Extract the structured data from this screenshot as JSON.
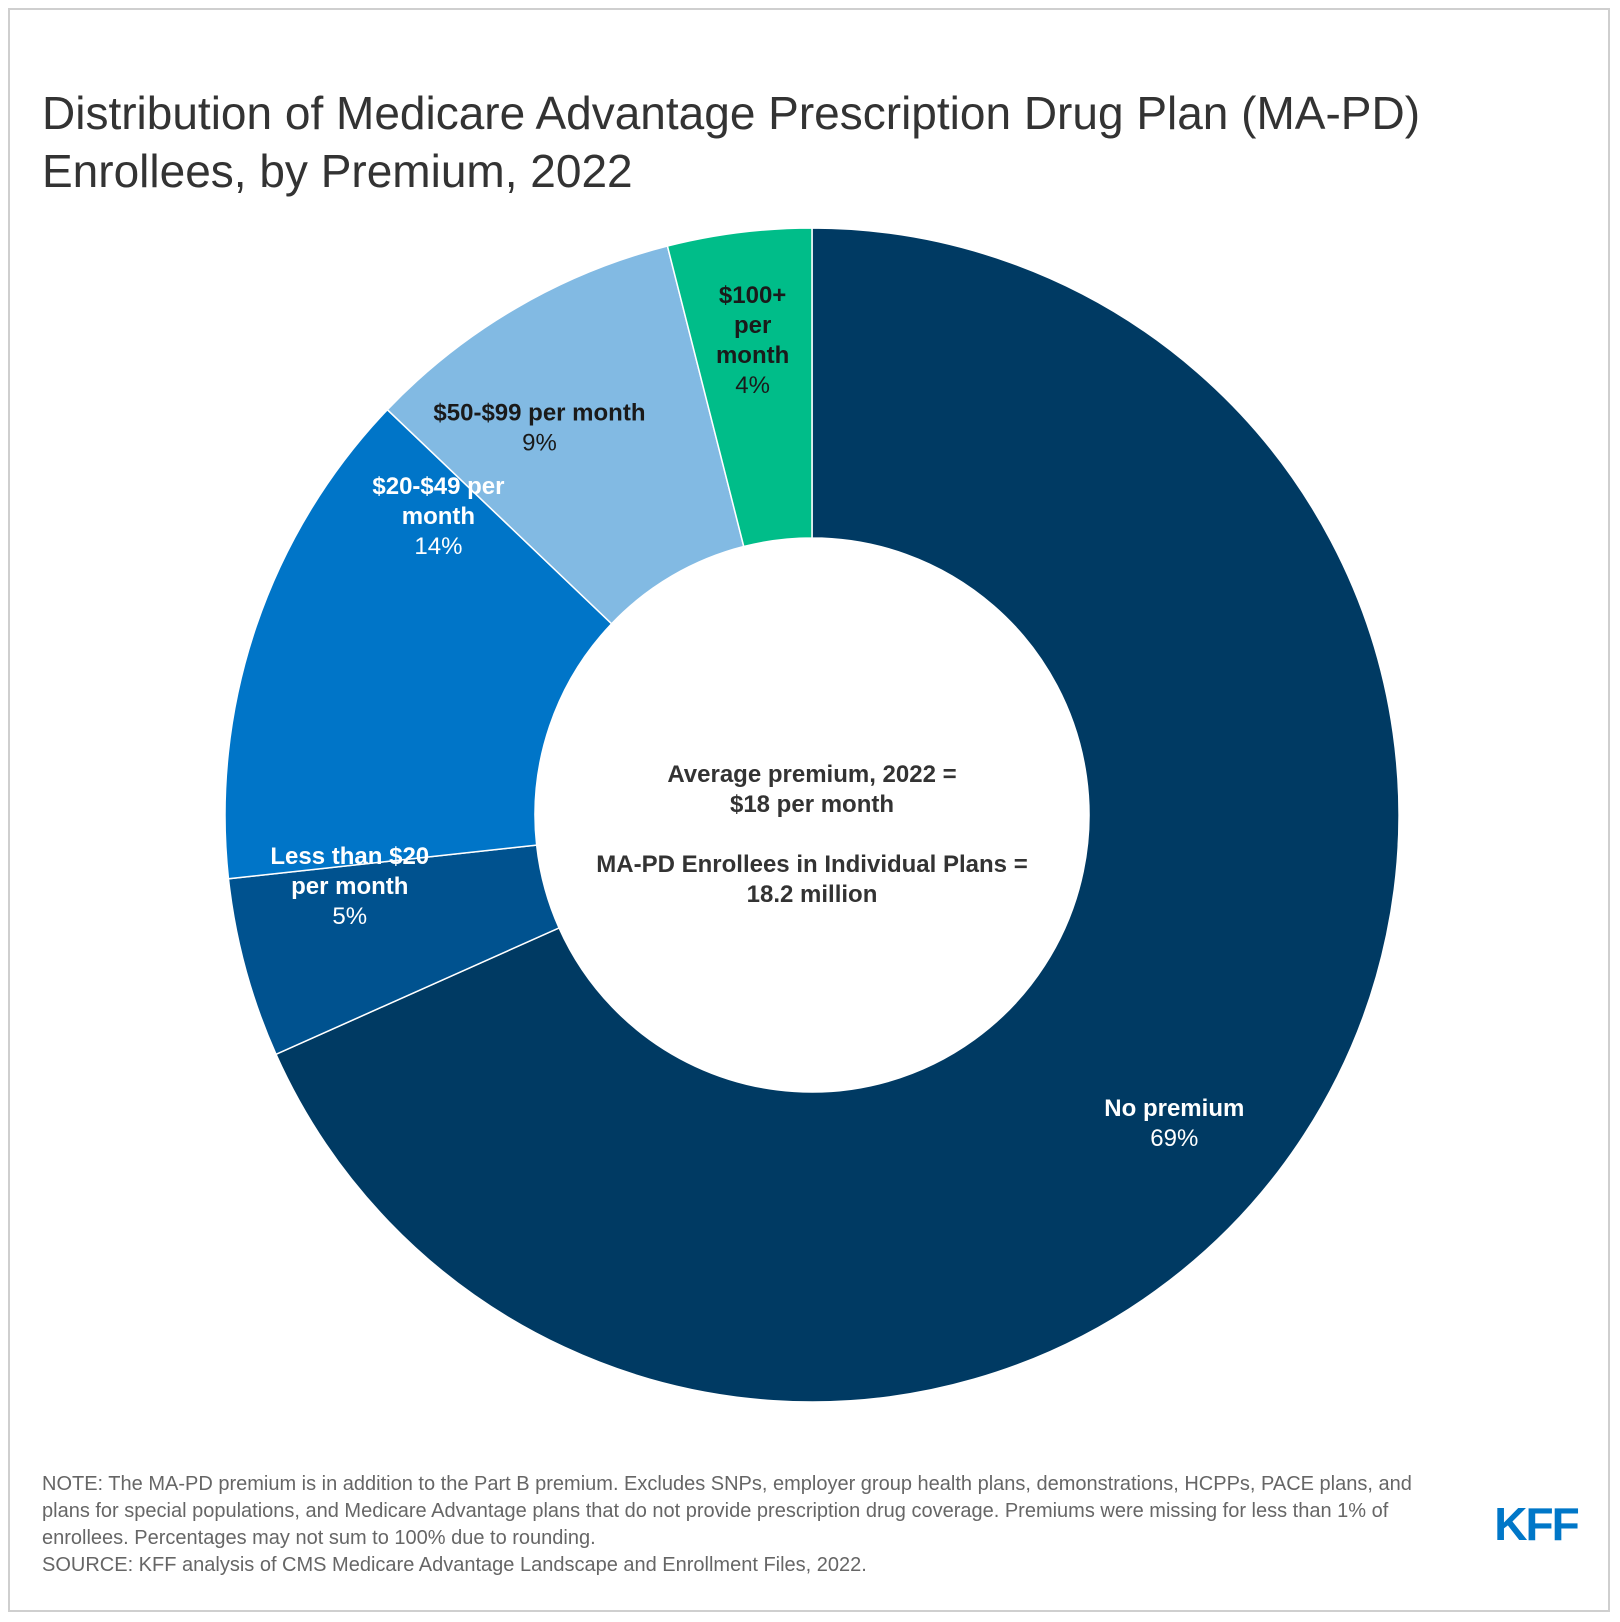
{
  "chart_data": {
    "type": "pie",
    "title": "Distribution of Medicare Advantage Prescription Drug Plan (MA-PD) Enrollees, by Premium, 2022",
    "center_text": [
      "Average premium, 2022 =",
      "$18 per month",
      "MA-PD Enrollees in Individual Plans =",
      "18.2 million"
    ],
    "slices": [
      {
        "label": "No premium",
        "value": 69,
        "value_label": "69%",
        "color": "#003a63",
        "text_color": "#ffffff"
      },
      {
        "label": "Less than $20 per month",
        "value": 5,
        "value_label": "5%",
        "color": "#00528f",
        "text_color": "#ffffff"
      },
      {
        "label": "$20-$49 per month",
        "value": 14,
        "value_label": "14%",
        "color": "#0075c8",
        "text_color": "#ffffff"
      },
      {
        "label": "$50-$99 per month",
        "value": 9,
        "value_label": "9%",
        "color": "#82bae3",
        "text_color": "#1a1a1a"
      },
      {
        "label": "$100+ per month",
        "value": 4,
        "value_label": "4%",
        "color": "#00bd89",
        "text_color": "#1a1a1a"
      }
    ]
  },
  "notes": {
    "note": "NOTE: The MA-PD premium is in addition to the Part B premium. Excludes SNPs, employer group health plans, demonstrations, HCPPs, PACE plans, and plans for special populations, and Medicare Advantage plans that do not provide prescription drug coverage. Premiums were missing for less than 1% of enrollees. Percentages may not sum to 100% due to rounding.",
    "source": "SOURCE: KFF analysis of CMS Medicare Advantage Landscape and Enrollment Files, 2022."
  },
  "logo": {
    "text": "KFF",
    "color": "#0077c8"
  }
}
